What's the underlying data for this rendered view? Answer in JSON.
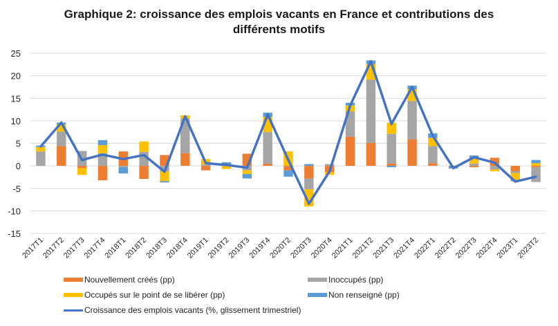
{
  "chart_data": {
    "type": "bar",
    "subtype": "stacked-bar-with-line",
    "title_line1": "Graphique 2: croissance des emplois vacants en France et contributions des",
    "title_line2": "différents motifs",
    "xlabel": "",
    "ylabel": "",
    "ylim": [
      -15,
      25
    ],
    "yticks": [
      "25",
      "20",
      "15",
      "10",
      "5",
      "0",
      "-5",
      "-10",
      "-15"
    ],
    "ytick_values": [
      25,
      20,
      15,
      10,
      5,
      0,
      -5,
      -10,
      -15
    ],
    "grid": true,
    "legend_position": "bottom",
    "categories": [
      "2017T1",
      "2017T2",
      "2017T3",
      "2017T4",
      "2018T1",
      "2018T2",
      "2018T3",
      "2018T4",
      "2019T1",
      "2019T2",
      "2019T3",
      "2019T4",
      "2020T2",
      "2020T3",
      "2020T4",
      "2021T1",
      "2021T2",
      "2021T3",
      "2021T4",
      "2022T1",
      "2022T2",
      "2022T3",
      "2022T4",
      "2023T1",
      "2023T2"
    ],
    "series": [
      {
        "name": "Nouvellement créés (pp)",
        "kind": "bar",
        "color": "#ED7D31",
        "values": [
          0,
          4.4,
          -0.5,
          -3.2,
          3.2,
          -2.9,
          2.4,
          2.8,
          -1.0,
          0,
          2.7,
          0.5,
          -1.0,
          -2.8,
          -1.4,
          6.5,
          5.1,
          0.5,
          5.9,
          0.6,
          0,
          -0.3,
          1.8,
          -1.2,
          -0.3
        ]
      },
      {
        "name": "Inoccupés (pp)",
        "kind": "bar",
        "color": "#A5A5A5",
        "values": [
          3.2,
          3.2,
          3.3,
          2.8,
          -0.3,
          3.1,
          -1.2,
          7.7,
          0.3,
          0,
          -1.0,
          7.0,
          0,
          -2.4,
          0.4,
          5.6,
          14.0,
          6.6,
          8.5,
          3.8,
          0,
          0.5,
          -0.8,
          -0.4,
          -3.3
        ]
      },
      {
        "name": "Occupés sur le point de se libérer (pp)",
        "kind": "bar",
        "color": "#FFC000",
        "values": [
          1.0,
          1.6,
          -1.5,
          1.8,
          0,
          2.3,
          -2.2,
          0.7,
          1.2,
          -0.7,
          -0.8,
          3.4,
          3.2,
          -3.8,
          -0.6,
          1.3,
          3.5,
          2.5,
          2.6,
          1.8,
          0.1,
          1.1,
          -0.4,
          -1.5,
          0.6
        ]
      },
      {
        "name": "Non renseigné (pp)",
        "kind": "bar",
        "color": "#5B9BD5",
        "values": [
          0.3,
          0.4,
          0,
          1.1,
          -1.4,
          0,
          -0.3,
          0,
          0,
          0.8,
          -1.0,
          0.9,
          -1.4,
          0.4,
          0,
          0.6,
          0.8,
          -0.3,
          0.8,
          1.0,
          -0.6,
          0.7,
          0,
          -0.3,
          0.7
        ]
      },
      {
        "name": "Croissance des emplois vacants (%, glissement trimestriel)",
        "kind": "line",
        "color": "#4472C4",
        "values": [
          4.3,
          9.6,
          1.3,
          2.5,
          1.5,
          2.4,
          -1.3,
          11.0,
          0.6,
          0.2,
          -0.4,
          11.4,
          1.3,
          -8.4,
          -1.2,
          13.4,
          23.2,
          9.3,
          17.5,
          6.7,
          -0.5,
          1.9,
          0.7,
          -3.5,
          -2.4
        ]
      }
    ]
  },
  "legend": [
    {
      "label": "Nouvellement créés (pp)",
      "color": "#ED7D31",
      "kind": "bar"
    },
    {
      "label": "Inoccupés (pp)",
      "color": "#A5A5A5",
      "kind": "bar"
    },
    {
      "label": "Occupés sur le point de se libérer (pp)",
      "color": "#FFC000",
      "kind": "bar"
    },
    {
      "label": "Non renseigné (pp)",
      "color": "#5B9BD5",
      "kind": "bar"
    },
    {
      "label": "Croissance des emplois vacants (%, glissement trimestriel)",
      "color": "#4472C4",
      "kind": "line"
    }
  ]
}
